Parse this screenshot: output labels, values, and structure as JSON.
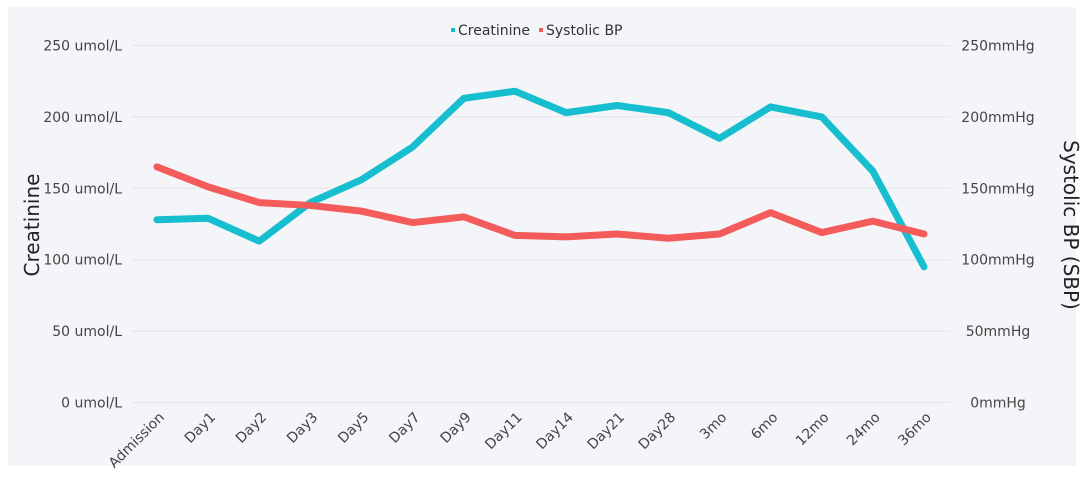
{
  "chart_data": {
    "type": "line",
    "title": "",
    "categories": [
      "Admission",
      "Day1",
      "Day2",
      "Day3",
      "Day5",
      "Day7",
      "Day9",
      "Day11",
      "Day14",
      "Day21",
      "Day28",
      "3mo",
      "6mo",
      "12mo",
      "24mo",
      "36mo"
    ],
    "series": [
      {
        "name": "Creatinine",
        "axis": "left",
        "color": "#17becf",
        "values": [
          128,
          129,
          113,
          140,
          156,
          179,
          213,
          218,
          203,
          208,
          203,
          185,
          207,
          200,
          162,
          95
        ]
      },
      {
        "name": "Systolic BP",
        "axis": "right",
        "color": "#f45b5b",
        "values": [
          165,
          151,
          140,
          138,
          134,
          126,
          130,
          117,
          116,
          118,
          115,
          118,
          133,
          119,
          127,
          118
        ]
      }
    ],
    "ylabel": "Creatinine",
    "y2label": "Systolic BP (SBP)",
    "ylim": [
      0,
      250
    ],
    "y2lim": [
      0,
      250
    ],
    "yticks": [
      "0 umol/L",
      "50 umol/L",
      "100 umol/L",
      "150 umol/L",
      "200 umol/L",
      "250 umol/L"
    ],
    "y2ticks": [
      "0mmHg",
      "50mmHg",
      "100mmHg",
      "150mmHg",
      "200mmHg",
      "250mmHg"
    ],
    "grid": true,
    "legend": "top-center",
    "legend_entries": [
      "Creatinine",
      "Systolic BP"
    ]
  }
}
